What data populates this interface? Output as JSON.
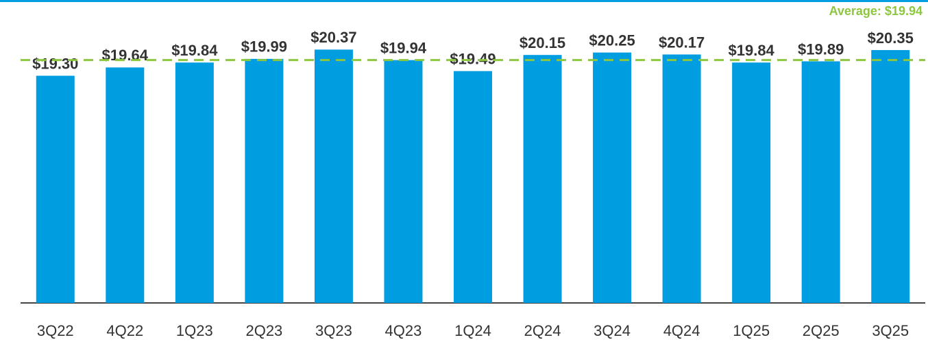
{
  "chart_data": {
    "type": "bar",
    "categories": [
      "3Q22",
      "4Q22",
      "1Q23",
      "2Q23",
      "3Q23",
      "4Q23",
      "1Q24",
      "2Q24",
      "3Q24",
      "4Q24",
      "1Q25",
      "2Q25",
      "3Q25"
    ],
    "values": [
      19.3,
      19.64,
      19.84,
      19.99,
      20.37,
      19.94,
      19.49,
      20.15,
      20.25,
      20.17,
      19.84,
      19.89,
      20.35
    ],
    "value_labels": [
      "$19.30",
      "$19.64",
      "$19.84",
      "$19.99",
      "$20.37",
      "$19.94",
      "$19.49",
      "$20.15",
      "$20.25",
      "$20.17",
      "$19.84",
      "$19.89",
      "$20.35"
    ],
    "color": "#009de0",
    "average": 19.94,
    "average_label": "Average: $19.94",
    "average_color": "#8dc63f",
    "ylim": [
      10,
      22.4
    ]
  }
}
